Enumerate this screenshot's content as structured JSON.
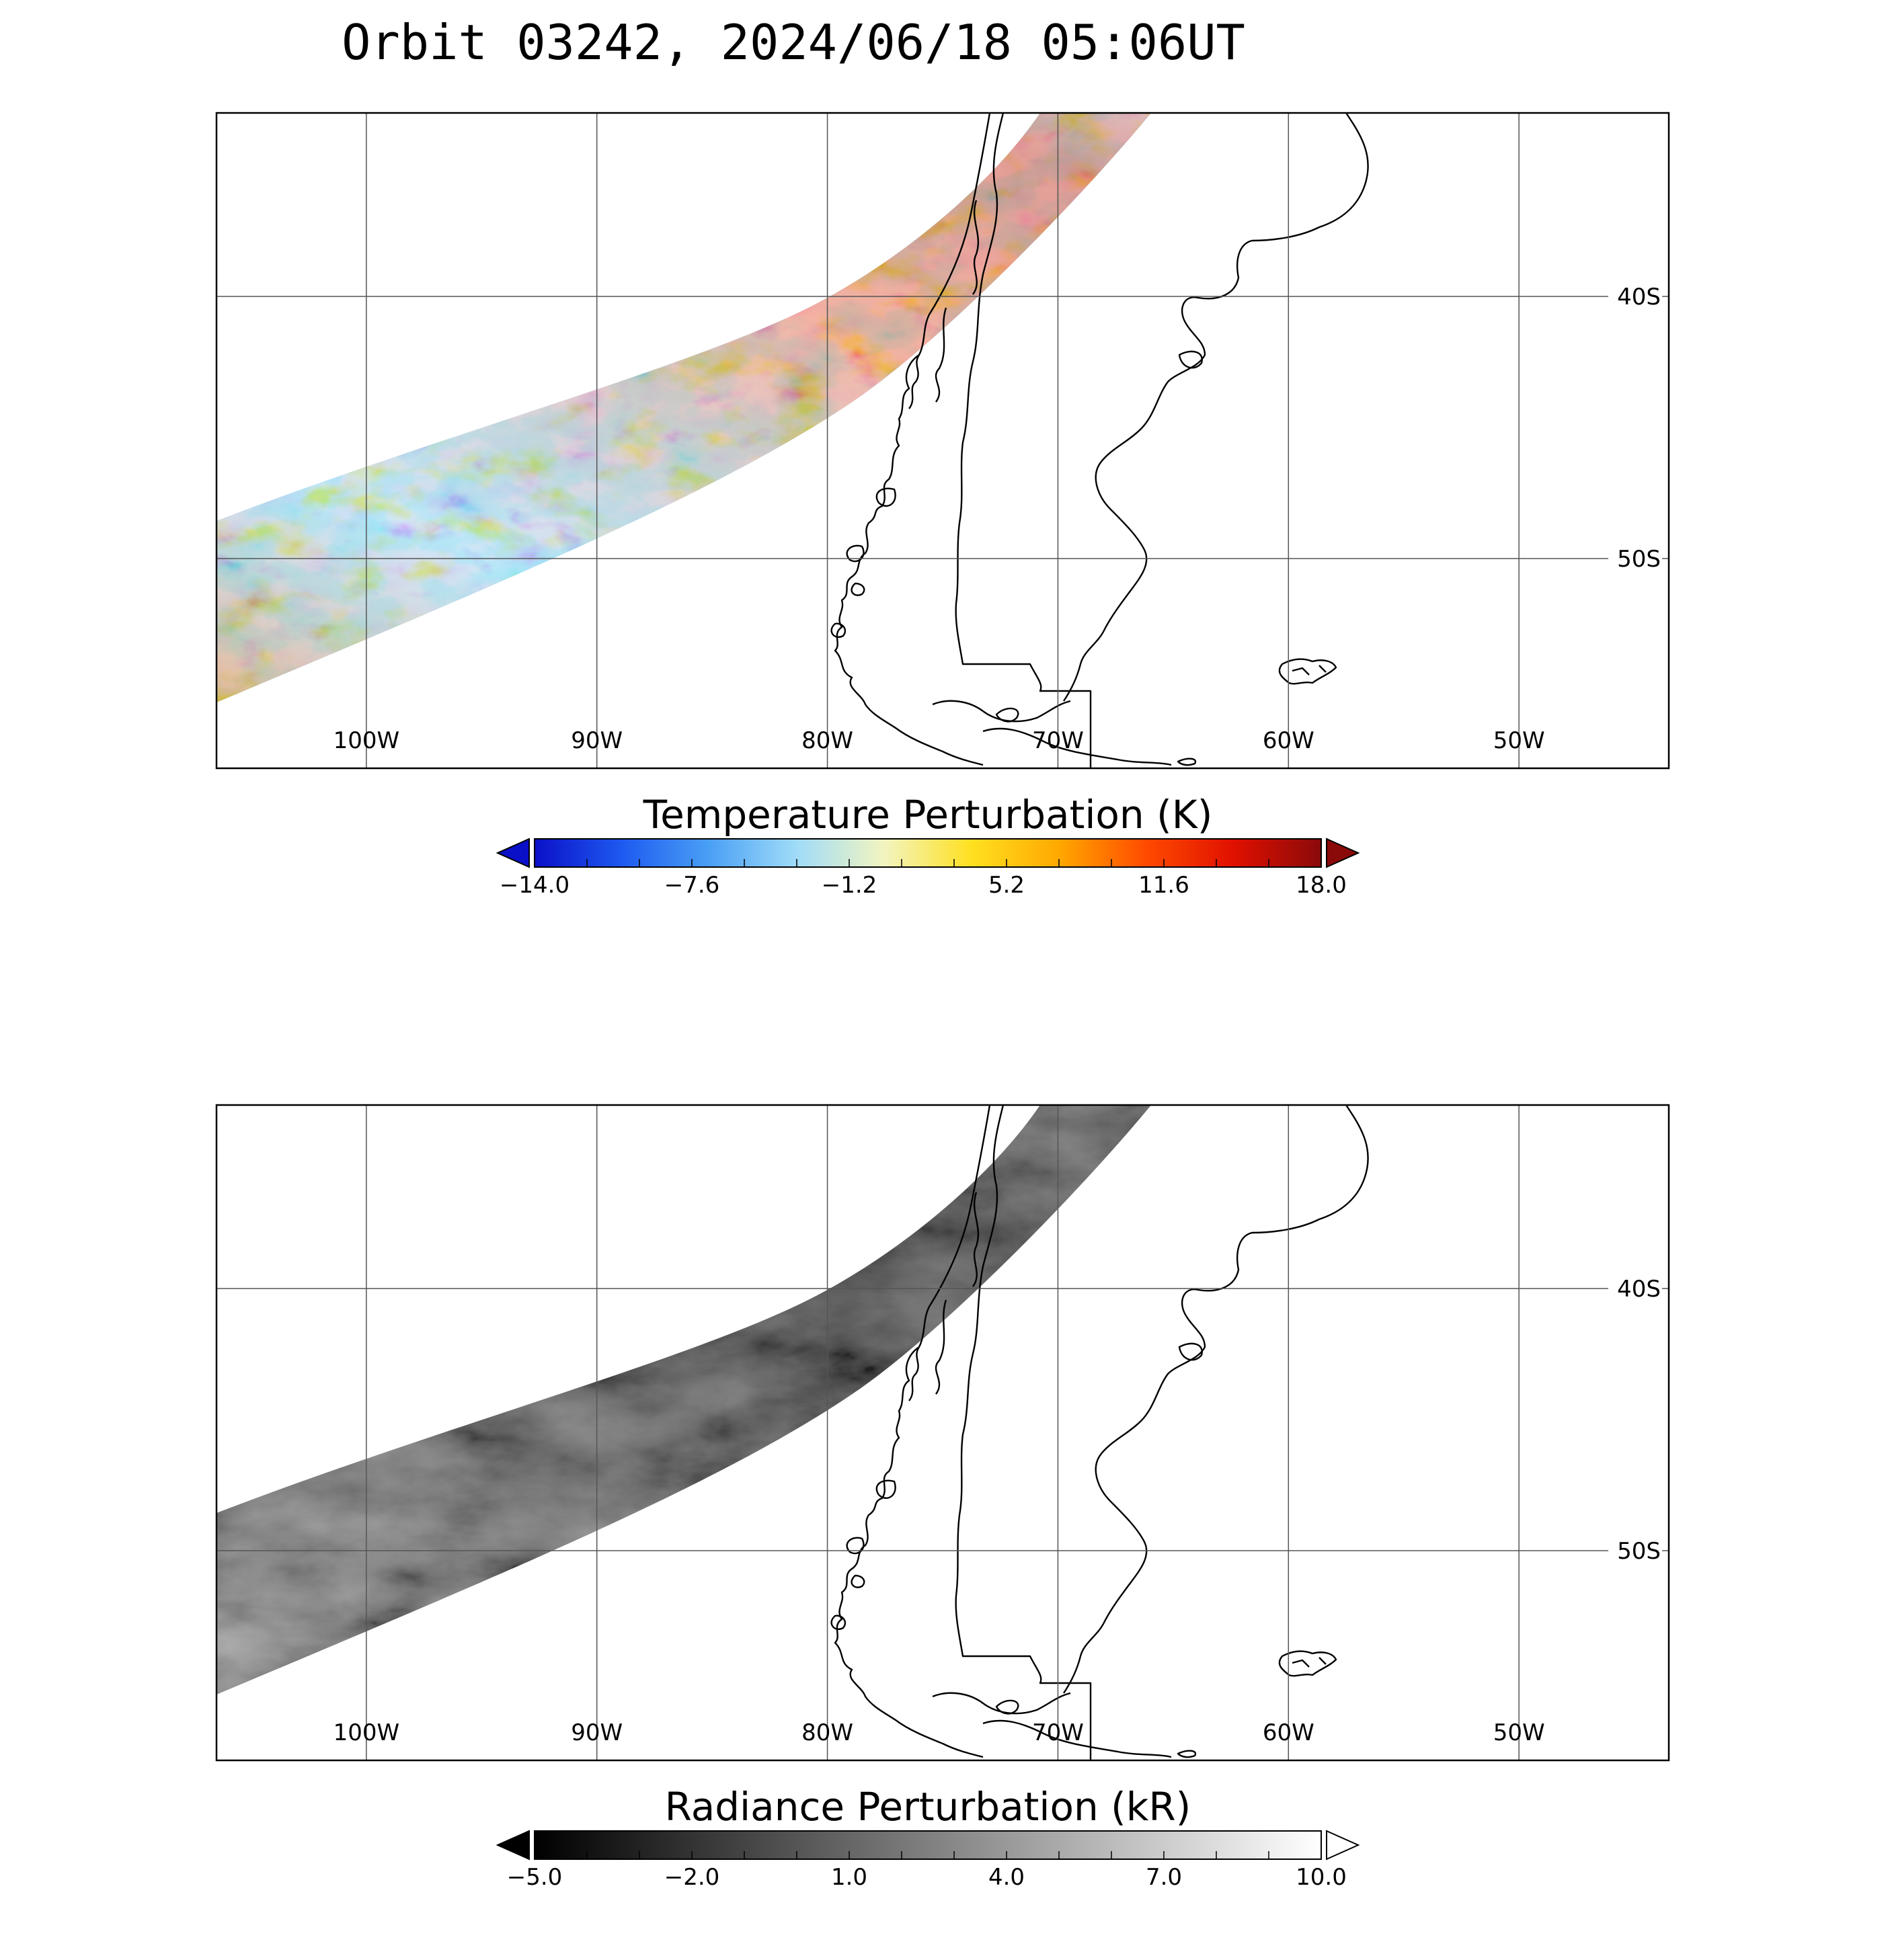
{
  "title": "Orbit 03242, 2024/06/18 05:06UT",
  "panels": [
    {
      "id": "temperature",
      "lon_range": [
        -106.5,
        -43.5
      ],
      "lat_range": [
        -58,
        -33
      ],
      "lon_ticks": [
        "100W",
        "90W",
        "80W",
        "70W",
        "60W",
        "50W"
      ],
      "lat_ticks": [
        "40S",
        "50S"
      ],
      "colorbar": {
        "title": "Temperature Perturbation (K)",
        "range": [
          -14.0,
          18.0
        ],
        "tick_labels": [
          "−14.0",
          "−7.6",
          "−1.2",
          "5.2",
          "11.6",
          "18.0"
        ],
        "colors": [
          "#0a10c8",
          "#1e5af0",
          "#4aa0f5",
          "#a0dcf8",
          "#f2f4c0",
          "#ffe020",
          "#ffa800",
          "#ff4a00",
          "#e01000",
          "#8a0a0a"
        ],
        "under_color": "#0a10c8",
        "over_color": "#8a0a0a"
      }
    },
    {
      "id": "radiance",
      "lon_range": [
        -106.5,
        -43.5
      ],
      "lat_range": [
        -58,
        -33
      ],
      "lon_ticks": [
        "100W",
        "90W",
        "80W",
        "70W",
        "60W",
        "50W"
      ],
      "lat_ticks": [
        "40S",
        "50S"
      ],
      "colorbar": {
        "title": "Radiance Perturbation (kR)",
        "range": [
          -5.0,
          10.0
        ],
        "tick_labels": [
          "−5.0",
          "−2.0",
          "1.0",
          "4.0",
          "7.0",
          "10.0"
        ],
        "colors": [
          "#000000",
          "#ffffff"
        ],
        "under_color": "#000000",
        "over_color": "#ffffff"
      }
    }
  ]
}
